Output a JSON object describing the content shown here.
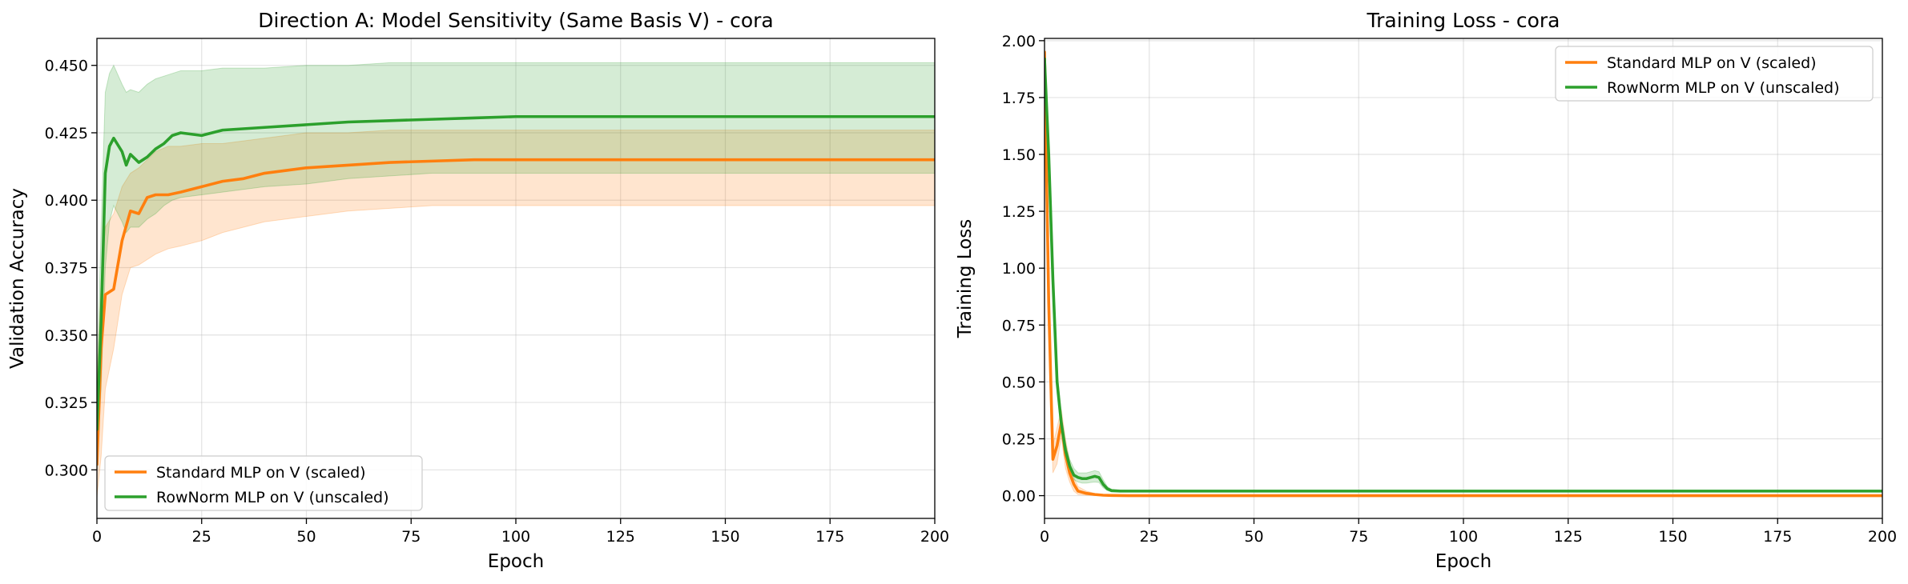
{
  "chart_data": [
    {
      "type": "line",
      "title": "Direction A: Model Sensitivity (Same Basis V) - cora",
      "xlabel": "Epoch",
      "ylabel": "Validation Accuracy",
      "xlim": [
        0,
        200
      ],
      "ylim": [
        0.282,
        0.46
      ],
      "xticks": [
        0,
        25,
        50,
        75,
        100,
        125,
        150,
        175,
        200
      ],
      "yticks": [
        0.3,
        0.325,
        0.35,
        0.375,
        0.4,
        0.425,
        0.45
      ],
      "tick_decimals": 3,
      "grid": true,
      "legend": "lower-left",
      "series": [
        {
          "name": "Standard MLP on V (scaled)",
          "color": "#ff7f0e",
          "x": [
            0,
            1,
            2,
            4,
            6,
            8,
            10,
            12,
            14,
            17,
            20,
            25,
            30,
            35,
            40,
            45,
            50,
            60,
            70,
            80,
            90,
            100,
            125,
            150,
            175,
            200
          ],
          "y": [
            0.302,
            0.345,
            0.365,
            0.367,
            0.385,
            0.396,
            0.395,
            0.401,
            0.402,
            0.402,
            0.403,
            0.405,
            0.407,
            0.408,
            0.41,
            0.411,
            0.412,
            0.413,
            0.414,
            0.4145,
            0.415,
            0.415,
            0.415,
            0.415,
            0.415,
            0.415
          ],
          "band_upper": [
            0.33,
            0.37,
            0.39,
            0.395,
            0.405,
            0.41,
            0.412,
            0.415,
            0.418,
            0.42,
            0.42,
            0.421,
            0.421,
            0.422,
            0.423,
            0.424,
            0.425,
            0.425,
            0.426,
            0.426,
            0.426,
            0.426,
            0.426,
            0.426,
            0.426,
            0.426
          ],
          "band_lower": [
            0.29,
            0.305,
            0.33,
            0.345,
            0.365,
            0.375,
            0.376,
            0.378,
            0.38,
            0.382,
            0.383,
            0.385,
            0.388,
            0.39,
            0.392,
            0.393,
            0.394,
            0.396,
            0.397,
            0.398,
            0.398,
            0.398,
            0.398,
            0.398,
            0.398,
            0.398
          ]
        },
        {
          "name": "RowNorm MLP on V (unscaled)",
          "color": "#2ca02c",
          "x": [
            0,
            1,
            2,
            3,
            4,
            6,
            7,
            8,
            10,
            12,
            14,
            16,
            18,
            20,
            25,
            30,
            40,
            50,
            60,
            70,
            80,
            90,
            100,
            125,
            150,
            175,
            200
          ],
          "y": [
            0.315,
            0.355,
            0.41,
            0.42,
            0.423,
            0.418,
            0.413,
            0.417,
            0.414,
            0.416,
            0.419,
            0.421,
            0.424,
            0.425,
            0.424,
            0.426,
            0.427,
            0.428,
            0.429,
            0.4295,
            0.43,
            0.4305,
            0.431,
            0.431,
            0.431,
            0.431,
            0.431
          ],
          "band_upper": [
            0.33,
            0.39,
            0.44,
            0.447,
            0.45,
            0.443,
            0.44,
            0.441,
            0.44,
            0.443,
            0.445,
            0.446,
            0.447,
            0.448,
            0.448,
            0.449,
            0.449,
            0.45,
            0.45,
            0.451,
            0.451,
            0.451,
            0.451,
            0.451,
            0.451,
            0.451,
            0.451
          ],
          "band_lower": [
            0.3,
            0.33,
            0.375,
            0.392,
            0.398,
            0.392,
            0.388,
            0.39,
            0.39,
            0.393,
            0.395,
            0.398,
            0.4,
            0.401,
            0.402,
            0.403,
            0.405,
            0.406,
            0.408,
            0.409,
            0.41,
            0.41,
            0.41,
            0.41,
            0.41,
            0.41,
            0.41
          ]
        }
      ]
    },
    {
      "type": "line",
      "title": "Training Loss - cora",
      "xlabel": "Epoch",
      "ylabel": "Training Loss",
      "xlim": [
        0,
        200
      ],
      "ylim": [
        -0.1,
        2.01
      ],
      "xticks": [
        0,
        25,
        50,
        75,
        100,
        125,
        150,
        175,
        200
      ],
      "yticks": [
        0.0,
        0.25,
        0.5,
        0.75,
        1.0,
        1.25,
        1.5,
        1.75,
        2.0
      ],
      "tick_decimals": 2,
      "grid": true,
      "legend": "upper-right",
      "series": [
        {
          "name": "Standard MLP on V (scaled)",
          "color": "#ff7f0e",
          "x": [
            0,
            1,
            2,
            3,
            4,
            5,
            6,
            7,
            8,
            10,
            12,
            14,
            16,
            20,
            30,
            200
          ],
          "y": [
            1.95,
            0.85,
            0.16,
            0.22,
            0.32,
            0.18,
            0.1,
            0.05,
            0.02,
            0.01,
            0.005,
            0.002,
            0.001,
            0.0,
            0.0,
            0.0
          ],
          "band_upper": [
            1.97,
            0.95,
            0.22,
            0.3,
            0.38,
            0.25,
            0.15,
            0.08,
            0.04,
            0.02,
            0.01,
            0.005,
            0.003,
            0.002,
            0.002,
            0.002
          ],
          "band_lower": [
            1.93,
            0.75,
            0.1,
            0.14,
            0.26,
            0.12,
            0.06,
            0.02,
            0.005,
            0.002,
            0.001,
            0.0,
            0.0,
            0.0,
            0.0,
            0.0
          ]
        },
        {
          "name": "RowNorm MLP on V (unscaled)",
          "color": "#2ca02c",
          "x": [
            0,
            1,
            2,
            3,
            4,
            5,
            6,
            7,
            8,
            9,
            10,
            11,
            12,
            13,
            14,
            15,
            16,
            18,
            20,
            30,
            200
          ],
          "y": [
            1.92,
            1.5,
            0.95,
            0.5,
            0.32,
            0.2,
            0.13,
            0.09,
            0.08,
            0.075,
            0.075,
            0.08,
            0.085,
            0.08,
            0.05,
            0.03,
            0.022,
            0.02,
            0.02,
            0.02,
            0.02
          ],
          "band_upper": [
            1.94,
            1.55,
            1.0,
            0.55,
            0.36,
            0.23,
            0.16,
            0.12,
            0.1,
            0.1,
            0.1,
            0.105,
            0.11,
            0.105,
            0.07,
            0.04,
            0.028,
            0.025,
            0.024,
            0.024,
            0.024
          ],
          "band_lower": [
            1.9,
            1.45,
            0.9,
            0.45,
            0.28,
            0.17,
            0.1,
            0.07,
            0.06,
            0.055,
            0.055,
            0.058,
            0.06,
            0.058,
            0.035,
            0.022,
            0.017,
            0.016,
            0.016,
            0.016,
            0.016
          ]
        }
      ]
    }
  ]
}
